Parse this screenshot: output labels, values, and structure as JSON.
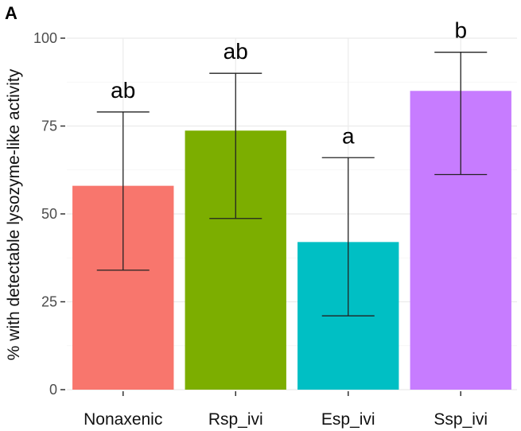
{
  "panel_label": "A",
  "chart_data": {
    "type": "bar",
    "title": "",
    "xlabel": "",
    "ylabel": "% with detectable lysozyme-like activity",
    "ylim": [
      0,
      100
    ],
    "yticks": [
      0,
      25,
      50,
      75,
      100
    ],
    "ytick_labels": [
      "0",
      "25",
      "50",
      "75",
      "100"
    ],
    "grid": true,
    "categories": [
      "Nonaxenic",
      "Rsp_ivi",
      "Esp_ivi",
      "Ssp_ivi"
    ],
    "values": [
      58,
      73.7,
      42,
      85
    ],
    "error_low": [
      34,
      48.7,
      21,
      61.2
    ],
    "error_high": [
      79,
      90,
      66,
      96
    ],
    "significance_letters": [
      "ab",
      "ab",
      "a",
      "b"
    ],
    "colors": [
      "#f8766d",
      "#7cae00",
      "#00bfc4",
      "#c77cff"
    ]
  }
}
